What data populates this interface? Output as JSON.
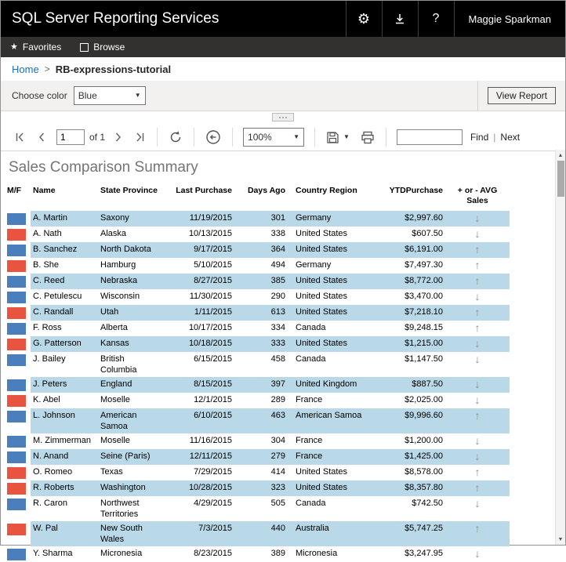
{
  "colors": {
    "male_swatch": "#4a7ebc",
    "female_swatch": "#e8543f",
    "row_highlight": "#b9d8e8",
    "link_blue": "#1a70bd",
    "trend_arrow": "#8e8e8e"
  },
  "header": {
    "title": "SQL Server Reporting Services",
    "user_name": "Maggie Sparkman",
    "help_label": "?"
  },
  "nav": {
    "favorites_label": "Favorites",
    "browse_label": "Browse"
  },
  "breadcrumb": {
    "home": "Home",
    "separator": ">",
    "current": "RB-expressions-tutorial"
  },
  "parameters": {
    "label": "Choose color",
    "selected_value": "Blue",
    "view_report_label": "View Report"
  },
  "toolbar": {
    "page_value": "1",
    "page_count_label": "of 1",
    "zoom_value": "100%",
    "find_value": "",
    "find_label": "Find",
    "next_label": "Next",
    "links_separator": "|"
  },
  "trend_icons": {
    "up": "↑",
    "down": "↓"
  },
  "report": {
    "title": "Sales Comparison Summary",
    "columns": [
      "M/F",
      "Name",
      "State Province",
      "Last Purchase",
      "Days Ago",
      "Country Region",
      "YTDPurchase",
      "+ or - AVG Sales"
    ],
    "rows": [
      {
        "gender": "M",
        "name": "A. Martin",
        "state_province": "Saxony",
        "last_purchase": "11/19/2015",
        "days_ago": "301",
        "country_region": "Germany",
        "ytd_purchase": "$2,997.60",
        "trend": "down"
      },
      {
        "gender": "F",
        "name": "A. Nath",
        "state_province": "Alaska",
        "last_purchase": "10/13/2015",
        "days_ago": "338",
        "country_region": "United States",
        "ytd_purchase": "$607.50",
        "trend": "down"
      },
      {
        "gender": "M",
        "name": "B. Sanchez",
        "state_province": "North Dakota",
        "last_purchase": "9/17/2015",
        "days_ago": "364",
        "country_region": "United States",
        "ytd_purchase": "$6,191.00",
        "trend": "up"
      },
      {
        "gender": "F",
        "name": "B. She",
        "state_province": "Hamburg",
        "last_purchase": "5/10/2015",
        "days_ago": "494",
        "country_region": "Germany",
        "ytd_purchase": "$7,497.30",
        "trend": "up"
      },
      {
        "gender": "M",
        "name": "C. Reed",
        "state_province": "Nebraska",
        "last_purchase": "8/27/2015",
        "days_ago": "385",
        "country_region": "United States",
        "ytd_purchase": "$8,772.00",
        "trend": "up"
      },
      {
        "gender": "M",
        "name": "C. Petulescu",
        "state_province": "Wisconsin",
        "last_purchase": "11/30/2015",
        "days_ago": "290",
        "country_region": "United States",
        "ytd_purchase": "$3,470.00",
        "trend": "down"
      },
      {
        "gender": "F",
        "name": "C. Randall",
        "state_province": "Utah",
        "last_purchase": "1/11/2015",
        "days_ago": "613",
        "country_region": "United States",
        "ytd_purchase": "$7,218.10",
        "trend": "up"
      },
      {
        "gender": "M",
        "name": "F. Ross",
        "state_province": "Alberta",
        "last_purchase": "10/17/2015",
        "days_ago": "334",
        "country_region": "Canada",
        "ytd_purchase": "$9,248.15",
        "trend": "up"
      },
      {
        "gender": "F",
        "name": "G. Patterson",
        "state_province": "Kansas",
        "last_purchase": "10/18/2015",
        "days_ago": "333",
        "country_region": "United States",
        "ytd_purchase": "$1,215.00",
        "trend": "down"
      },
      {
        "gender": "M",
        "name": "J. Bailey",
        "state_province": "British Columbia",
        "last_purchase": "6/15/2015",
        "days_ago": "458",
        "country_region": "Canada",
        "ytd_purchase": "$1,147.50",
        "trend": "down"
      },
      {
        "gender": "M",
        "name": "J. Peters",
        "state_province": "England",
        "last_purchase": "8/15/2015",
        "days_ago": "397",
        "country_region": "United Kingdom",
        "ytd_purchase": "$887.50",
        "trend": "down"
      },
      {
        "gender": "F",
        "name": "K. Abel",
        "state_province": "Moselle",
        "last_purchase": "12/1/2015",
        "days_ago": "289",
        "country_region": "France",
        "ytd_purchase": "$2,025.00",
        "trend": "down"
      },
      {
        "gender": "M",
        "name": "L. Johnson",
        "state_province": "American Samoa",
        "last_purchase": "6/10/2015",
        "days_ago": "463",
        "country_region": "American Samoa",
        "ytd_purchase": "$9,996.60",
        "trend": "up"
      },
      {
        "gender": "M",
        "name": "M. Zimmerman",
        "state_province": "Moselle",
        "last_purchase": "11/16/2015",
        "days_ago": "304",
        "country_region": "France",
        "ytd_purchase": "$1,200.00",
        "trend": "down"
      },
      {
        "gender": "M",
        "name": "N. Anand",
        "state_province": "Seine (Paris)",
        "last_purchase": "12/11/2015",
        "days_ago": "279",
        "country_region": "France",
        "ytd_purchase": "$1,425.00",
        "trend": "down"
      },
      {
        "gender": "F",
        "name": "O. Romeo",
        "state_province": "Texas",
        "last_purchase": "7/29/2015",
        "days_ago": "414",
        "country_region": "United States",
        "ytd_purchase": "$8,578.00",
        "trend": "up"
      },
      {
        "gender": "F",
        "name": "R. Roberts",
        "state_province": "Washington",
        "last_purchase": "10/28/2015",
        "days_ago": "323",
        "country_region": "United States",
        "ytd_purchase": "$8,357.80",
        "trend": "up"
      },
      {
        "gender": "M",
        "name": "R. Caron",
        "state_province": "Northwest Territories",
        "last_purchase": "4/29/2015",
        "days_ago": "505",
        "country_region": "Canada",
        "ytd_purchase": "$742.50",
        "trend": "down"
      },
      {
        "gender": "F",
        "name": "W. Pal",
        "state_province": "New South Wales",
        "last_purchase": "7/3/2015",
        "days_ago": "440",
        "country_region": "Australia",
        "ytd_purchase": "$5,747.25",
        "trend": "up"
      },
      {
        "gender": "M",
        "name": "Y. Sharma",
        "state_province": "Micronesia",
        "last_purchase": "8/23/2015",
        "days_ago": "389",
        "country_region": "Micronesia",
        "ytd_purchase": "$3,247.95",
        "trend": "down"
      }
    ]
  }
}
